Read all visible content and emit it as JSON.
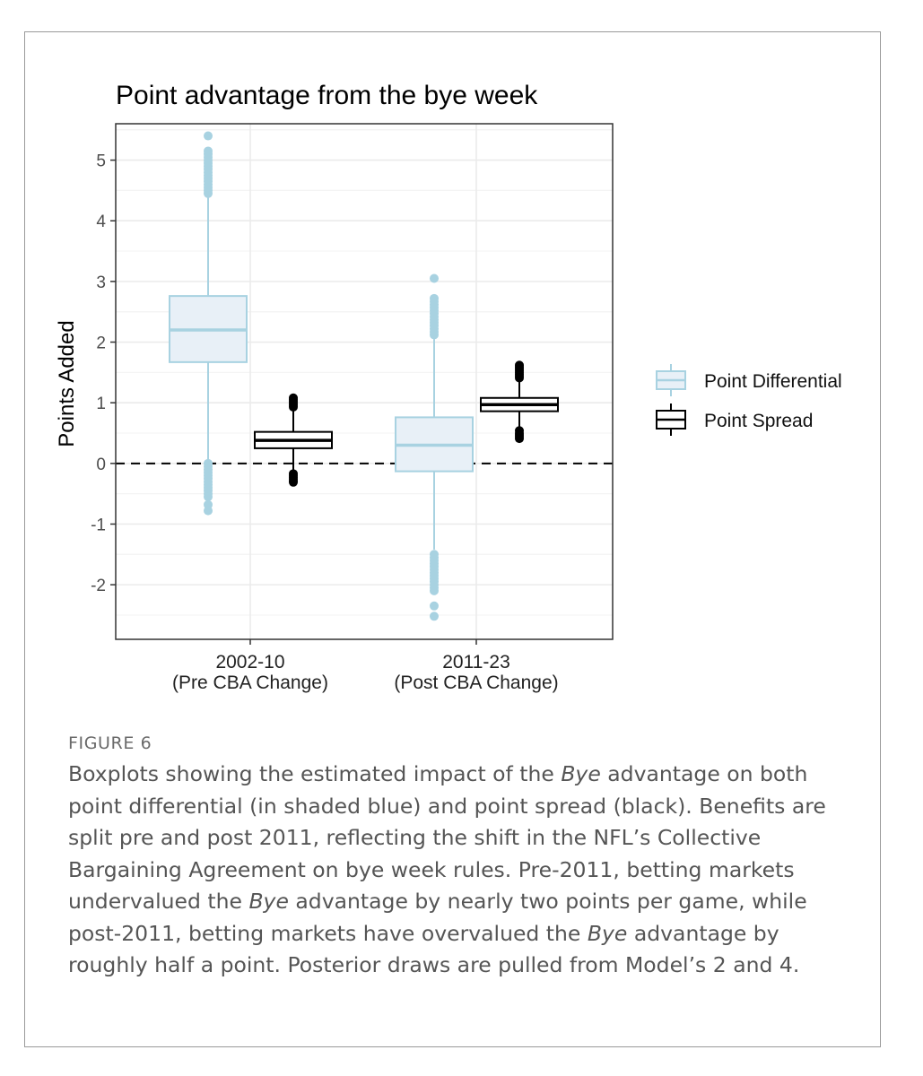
{
  "figure": {
    "label": "FIGURE 6",
    "caption": [
      {
        "text": "Boxplots showing the estimated impact of the "
      },
      {
        "text": "Bye",
        "italic": true
      },
      {
        "text": " advantage on both point differential (in shaded blue) and point spread (black). Benefits are split pre and post 2011, reflecting the shift in the NFL’s Collective Bargaining Agreement on bye week rules. Pre-2011, betting markets undervalued the "
      },
      {
        "text": "Bye",
        "italic": true
      },
      {
        "text": " advantage by nearly two points per game, while post-2011, betting markets have overvalued the "
      },
      {
        "text": "Bye",
        "italic": true
      },
      {
        "text": " advantage by roughly half a point. Posterior draws are pulled from Model’s 2 and 4."
      }
    ]
  },
  "chart_data": {
    "type": "boxplot",
    "title": "Point advantage from the bye week",
    "ylabel": "Points Added",
    "xlabel": "",
    "ylim": [
      -2.9,
      5.6
    ],
    "yticks": [
      -2,
      -1,
      0,
      1,
      2,
      3,
      4,
      5
    ],
    "grid": true,
    "categories": [
      {
        "line1": "2002-10",
        "line2": "(Pre CBA Change)"
      },
      {
        "line1": "2011-23",
        "line2": "(Post CBA Change)"
      }
    ],
    "reference_line": {
      "y": 0,
      "style": "dashed"
    },
    "legend_position": "right",
    "colors": {
      "point_differential_fill": "#e8f0f7",
      "point_differential_stroke": "#a8d2e1",
      "point_spread_fill": "#ffffff",
      "point_spread_stroke": "#000000",
      "grid": "#ebebeb"
    },
    "series": [
      {
        "name": "Point Differential",
        "boxes": [
          {
            "category": 0,
            "whisker_low": 0.05,
            "q1": 1.67,
            "median": 2.2,
            "q3": 2.76,
            "whisker_high": 4.38,
            "outliers": [
              5.4,
              5.15,
              5.1,
              5.05,
              5.0,
              4.95,
              4.9,
              4.85,
              4.8,
              4.75,
              4.7,
              4.65,
              4.6,
              4.55,
              4.5,
              4.45,
              0.0,
              -0.05,
              -0.1,
              -0.15,
              -0.2,
              -0.25,
              -0.3,
              -0.35,
              -0.4,
              -0.45,
              -0.5,
              -0.55,
              -0.68,
              -0.78
            ]
          },
          {
            "category": 1,
            "whisker_low": -1.42,
            "q1": -0.13,
            "median": 0.3,
            "q3": 0.76,
            "whisker_high": 2.05,
            "outliers": [
              3.05,
              2.72,
              2.67,
              2.62,
              2.57,
              2.52,
              2.47,
              2.42,
              2.37,
              2.32,
              2.27,
              2.22,
              2.17,
              2.12,
              -1.5,
              -1.55,
              -1.6,
              -1.65,
              -1.7,
              -1.75,
              -1.8,
              -1.85,
              -1.9,
              -1.95,
              -2.0,
              -2.05,
              -2.1,
              -2.35,
              -2.52
            ]
          }
        ]
      },
      {
        "name": "Point Spread",
        "boxes": [
          {
            "category": 0,
            "whisker_low": -0.13,
            "q1": 0.25,
            "median": 0.38,
            "q3": 0.52,
            "whisker_high": 0.9,
            "outliers": [
              1.08,
              1.05,
              1.02,
              0.99,
              0.96,
              0.93,
              -0.17,
              -0.2,
              -0.23,
              -0.26,
              -0.29,
              -0.31
            ]
          },
          {
            "category": 1,
            "whisker_low": 0.57,
            "q1": 0.86,
            "median": 0.97,
            "q3": 1.08,
            "whisker_high": 1.38,
            "outliers": [
              1.62,
              1.59,
              1.56,
              1.53,
              1.5,
              1.47,
              1.44,
              1.41,
              0.54,
              0.5,
              0.47,
              0.44,
              0.41
            ]
          }
        ]
      }
    ]
  }
}
